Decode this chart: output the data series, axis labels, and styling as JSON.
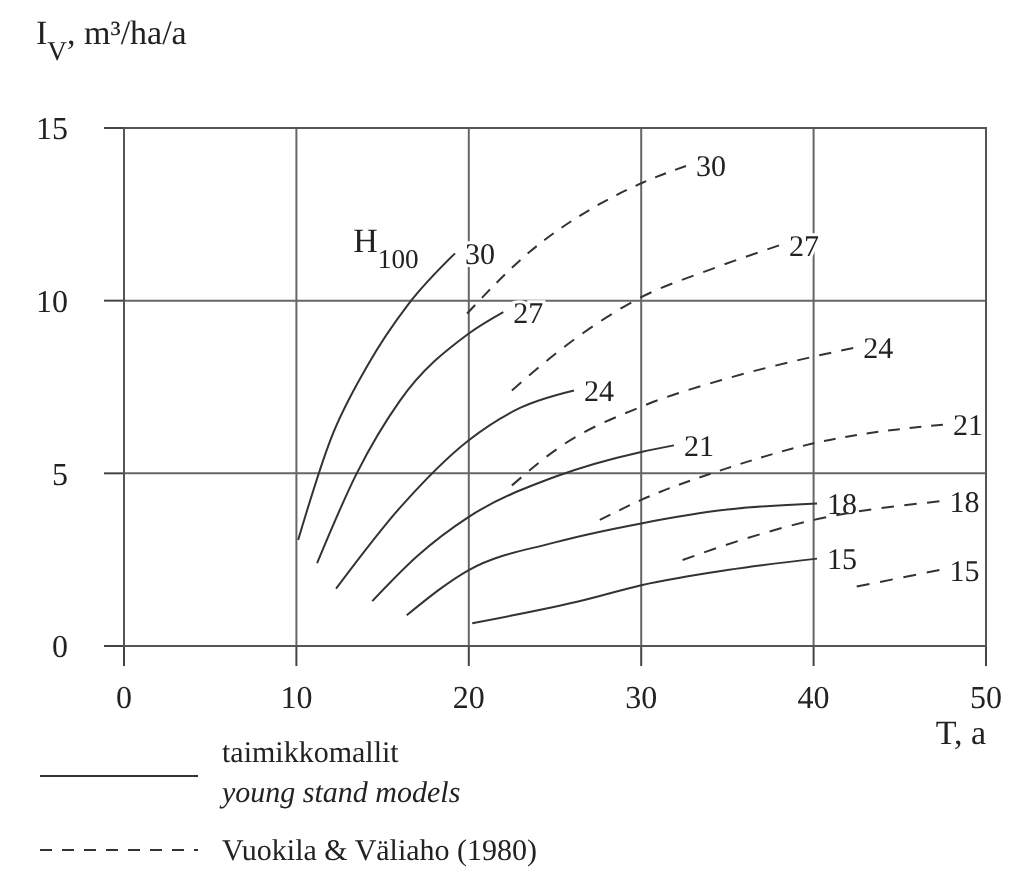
{
  "chart_data": {
    "type": "line",
    "ylabel": "I$_{V}$, m³/ha/a",
    "xlabel": "T, a",
    "xlim": [
      0,
      50
    ],
    "ylim": [
      0,
      15
    ],
    "xticks": [
      0,
      10,
      20,
      30,
      40,
      50
    ],
    "yticks": [
      0,
      5,
      10,
      15
    ],
    "grid": true,
    "annotations": [
      "H$_{100}$",
      "taimikkomallit",
      "young stand models",
      "Vuokila & Väliaho (1980)"
    ],
    "series": [
      {
        "name": "30",
        "color": "#333333",
        "line_style": "solid",
        "x": [
          10.1,
          12,
          14.1,
          16.5,
          19.2
        ],
        "values": [
          3.07,
          6,
          8.1,
          9.9,
          11.37
        ]
      },
      {
        "name": "27",
        "color": "#333333",
        "line_style": "solid",
        "x": [
          11.2,
          13.5,
          16,
          20,
          22
        ],
        "values": [
          2.4,
          5,
          7.1,
          9.05,
          9.67
        ]
      },
      {
        "name": "24",
        "color": "#333333",
        "line_style": "solid",
        "x": [
          12.3,
          16,
          20,
          23,
          26.1
        ],
        "values": [
          1.66,
          4,
          5.96,
          6.9,
          7.4
        ]
      },
      {
        "name": "21",
        "color": "#333333",
        "line_style": "solid",
        "x": [
          14.4,
          17,
          20,
          25,
          30,
          31.9
        ],
        "values": [
          1.3,
          2.6,
          3.74,
          4.9,
          5.62,
          5.81
        ]
      },
      {
        "name": "18",
        "color": "#333333",
        "line_style": "solid",
        "x": [
          16.4,
          20,
          25,
          30,
          35,
          40.2
        ],
        "values": [
          0.89,
          2.2,
          3,
          3.55,
          3.95,
          4.13
        ]
      },
      {
        "name": "15",
        "color": "#333333",
        "line_style": "solid",
        "x": [
          20.2,
          26.7,
          30,
          35,
          40.2
        ],
        "values": [
          0.66,
          1.33,
          1.76,
          2.2,
          2.53
        ]
      },
      {
        "name": "30",
        "color": "#333333",
        "line_style": "dashed",
        "x": [
          19.9,
          23.5,
          27.6,
          30,
          32.6
        ],
        "values": [
          9.63,
          11.4,
          12.8,
          13.4,
          13.9
        ]
      },
      {
        "name": "27",
        "color": "#333333",
        "line_style": "dashed",
        "x": [
          22.5,
          25.3,
          30,
          34,
          38
        ],
        "values": [
          7.4,
          8.57,
          10.1,
          10.9,
          11.6
        ]
      },
      {
        "name": "24",
        "color": "#333333",
        "line_style": "dashed",
        "x": [
          22.5,
          25.3,
          30,
          35,
          40,
          42.3
        ],
        "values": [
          4.65,
          5.77,
          6.93,
          7.75,
          8.38,
          8.63
        ]
      },
      {
        "name": "21",
        "color": "#333333",
        "line_style": "dashed",
        "x": [
          27.6,
          30,
          35,
          40,
          47.5
        ],
        "values": [
          3.65,
          4.23,
          5.15,
          5.87,
          6.41
        ]
      },
      {
        "name": "18",
        "color": "#333333",
        "line_style": "dashed",
        "x": [
          32.4,
          36,
          40,
          47.3
        ],
        "values": [
          2.49,
          3.1,
          3.65,
          4.19
        ]
      },
      {
        "name": "15",
        "color": "#333333",
        "line_style": "dashed",
        "x": [
          42.5,
          47.3
        ],
        "values": [
          1.72,
          2.2
        ]
      }
    ]
  }
}
